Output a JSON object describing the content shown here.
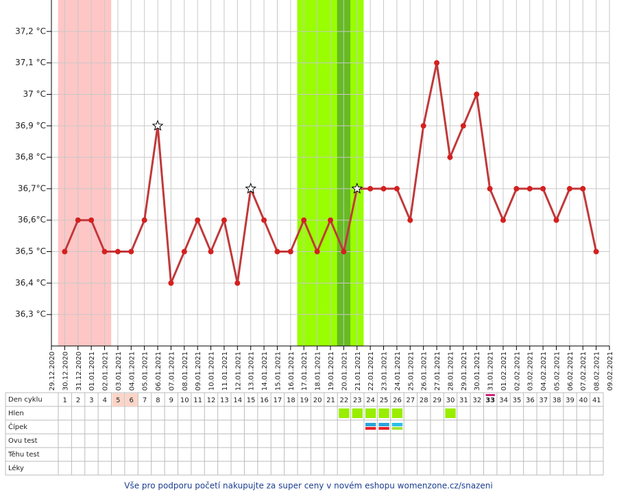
{
  "chart_data": {
    "type": "line",
    "x": [
      "29.12.2020",
      "30.12.2020",
      "31.12.2020",
      "01.01.2021",
      "02.01.2021",
      "03.01.2021",
      "04.01.2021",
      "05.01.2021",
      "06.01.2021",
      "07.01.2021",
      "08.01.2021",
      "09.01.2021",
      "10.01.2021",
      "11.01.2021",
      "12.01.2021",
      "13.01.2021",
      "14.01.2021",
      "15.01.2021",
      "16.01.2021",
      "17.01.2021",
      "18.01.2021",
      "19.01.2021",
      "20.01.2021",
      "21.01.2021",
      "22.01.2021",
      "23.01.2021",
      "24.01.2021",
      "25.01.2021",
      "26.01.2021",
      "27.01.2021",
      "28.01.2021",
      "29.01.2021",
      "30.01.2021",
      "31.01.2021",
      "01.02.2021",
      "02.02.2021",
      "03.02.2021",
      "04.02.2021",
      "05.02.2021",
      "06.02.2021",
      "07.02.2021",
      "08.02.2021",
      "09.02.2021"
    ],
    "series": [
      {
        "color": "#c0393b",
        "point_color": "#d42020",
        "values": [
          null,
          36.5,
          36.6,
          36.6,
          36.5,
          36.5,
          36.5,
          36.6,
          36.9,
          36.4,
          36.5,
          36.6,
          36.5,
          36.6,
          36.4,
          36.7,
          36.6,
          36.5,
          36.5,
          36.6,
          36.5,
          36.6,
          36.5,
          36.7,
          36.7,
          36.7,
          36.7,
          36.6,
          36.9,
          37.1,
          36.8,
          36.9,
          37.0,
          36.7,
          36.6,
          36.7,
          36.7,
          36.7,
          36.6,
          36.7,
          36.7,
          36.5,
          null
        ]
      }
    ],
    "star_points": [
      8,
      15,
      23
    ],
    "bands": [
      {
        "from": 0.5,
        "to": 4.5,
        "color": "#ffc6c6"
      },
      {
        "from": 18.5,
        "to": 23.5,
        "color": "#99ff00"
      },
      {
        "from": 21.5,
        "to": 22.5,
        "color": "#66bb22"
      }
    ],
    "ylim": [
      36.2,
      37.3
    ],
    "yticks": [
      {
        "value": 36.3,
        "label": "36,3 °C"
      },
      {
        "value": 36.4,
        "label": "36,4 °C"
      },
      {
        "value": 36.5,
        "label": "36,5 °C"
      },
      {
        "value": 36.6,
        "label": "36,6°C"
      },
      {
        "value": 36.7,
        "label": "36,7°C"
      },
      {
        "value": 36.8,
        "label": "36,8 °C"
      },
      {
        "value": 36.9,
        "label": "36,9 °C"
      },
      {
        "value": 37,
        "label": "37 °C"
      },
      {
        "value": 37.1,
        "label": "37,1 °C"
      },
      {
        "value": 37.2,
        "label": "37,2 °C"
      }
    ],
    "grid": true
  },
  "table": {
    "row_labels": [
      "Den cyklu",
      "Hlen",
      "Čípek",
      "Ovu test",
      "Těhu test",
      "Léky"
    ],
    "days": [
      1,
      2,
      3,
      4,
      5,
      6,
      7,
      8,
      9,
      10,
      11,
      12,
      13,
      14,
      15,
      16,
      17,
      18,
      19,
      20,
      21,
      22,
      23,
      24,
      25,
      26,
      27,
      28,
      29,
      30,
      31,
      32,
      33,
      34,
      35,
      36,
      37,
      38,
      39,
      40,
      41
    ],
    "highlighted_days": [
      5,
      6
    ],
    "current_day": 33,
    "hlen": [
      22,
      23,
      24,
      25,
      26,
      30
    ],
    "hlen_color": "#99ee00",
    "cipek": [
      {
        "day": 24,
        "colors": [
          "#29a3d8",
          "#e8202a"
        ]
      },
      {
        "day": 25,
        "colors": [
          "#29a3d8",
          "#e8202a"
        ]
      },
      {
        "day": 26,
        "colors": [
          "#29c0e8",
          "#a6e22e"
        ]
      }
    ]
  },
  "footer": "Vše pro podporu početí nakupujte za super ceny v novém eshopu womenzone.cz/snazeni"
}
